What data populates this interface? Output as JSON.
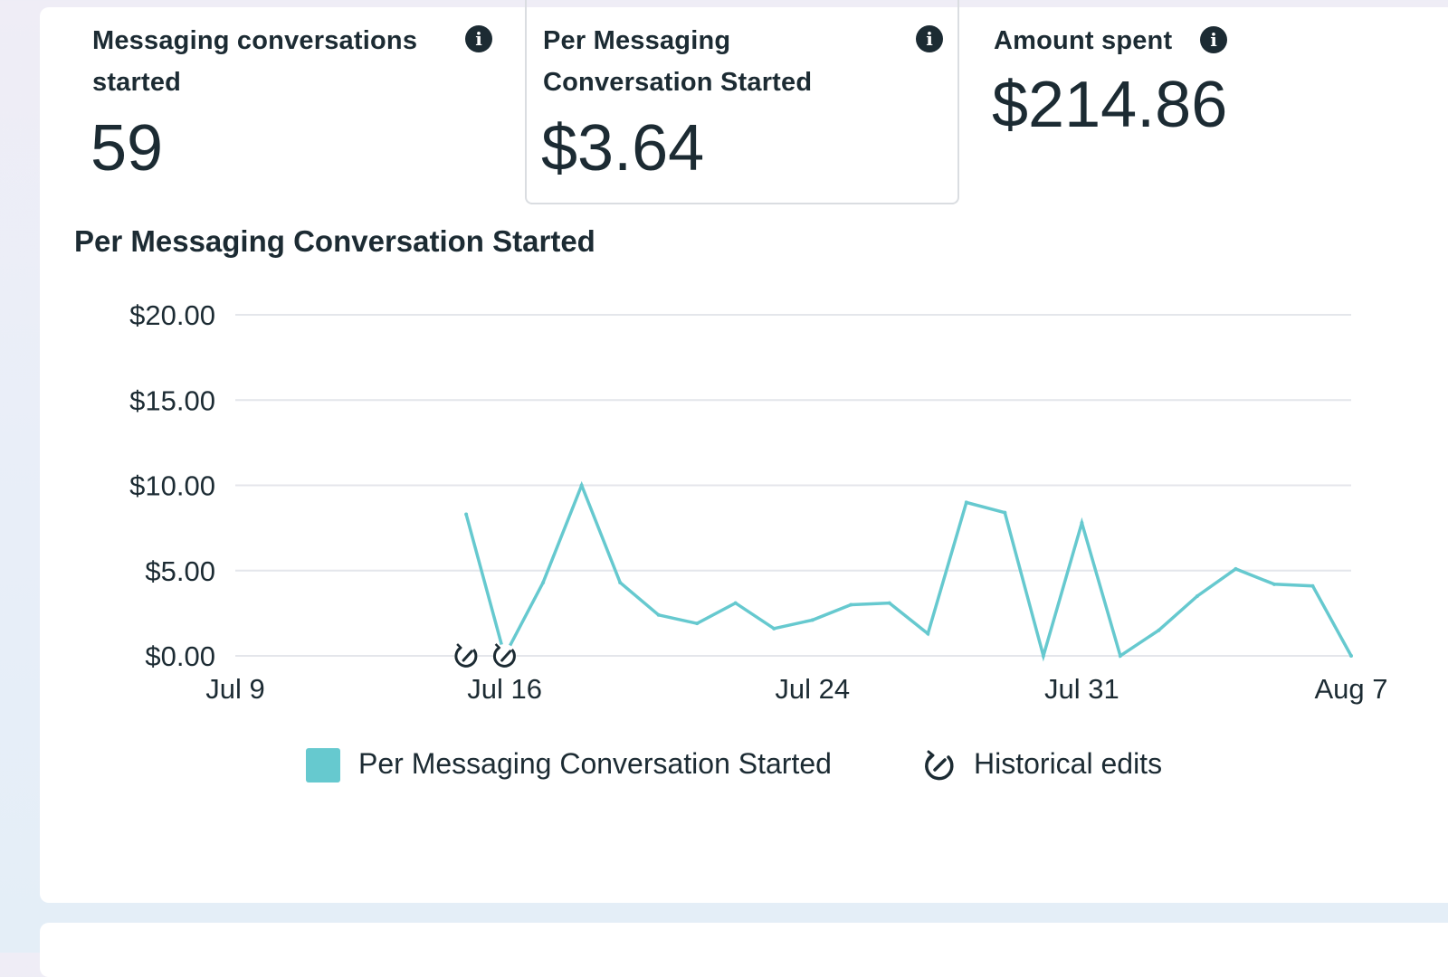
{
  "metrics": [
    {
      "label": "Messaging conversations started",
      "value": "59"
    },
    {
      "label": "Per Messaging Conversation Started",
      "value": "$3.64"
    },
    {
      "label": "Amount spent",
      "value": "$214.86"
    }
  ],
  "icons": {
    "info": "info-icon",
    "historical_edit": "history-edit-icon"
  },
  "colors": {
    "series": "#66c9cf",
    "grid": "#e4e6eb",
    "text": "#1c2b33"
  },
  "chart_data": {
    "type": "line",
    "title": "Per Messaging Conversation Started",
    "xlabel": "",
    "ylabel": "",
    "y_ticks": [
      "$0.00",
      "$5.00",
      "$10.00",
      "$15.00",
      "$20.00"
    ],
    "x_ticks": [
      "Jul 9",
      "Jul 16",
      "Jul 24",
      "Jul 31",
      "Aug 7"
    ],
    "ylim": [
      0,
      20
    ],
    "xlim": [
      "2023-07-09",
      "2023-08-07"
    ],
    "grid": true,
    "legend_position": "bottom",
    "series": [
      {
        "name": "Per Messaging Conversation Started",
        "color": "#66c9cf",
        "points": [
          {
            "x": "2023-07-15",
            "y": 8.3
          },
          {
            "x": "2023-07-16",
            "y": 0
          },
          {
            "x": "2023-07-17",
            "y": 4.3
          },
          {
            "x": "2023-07-18",
            "y": 10.0
          },
          {
            "x": "2023-07-19",
            "y": 4.3
          },
          {
            "x": "2023-07-20",
            "y": 2.4
          },
          {
            "x": "2023-07-21",
            "y": 1.9
          },
          {
            "x": "2023-07-22",
            "y": 3.1
          },
          {
            "x": "2023-07-23",
            "y": 1.6
          },
          {
            "x": "2023-07-24",
            "y": 2.1
          },
          {
            "x": "2023-07-25",
            "y": 3.0
          },
          {
            "x": "2023-07-26",
            "y": 3.1
          },
          {
            "x": "2023-07-27",
            "y": 1.3
          },
          {
            "x": "2023-07-28",
            "y": 9.0
          },
          {
            "x": "2023-07-29",
            "y": 8.4
          },
          {
            "x": "2023-07-30",
            "y": 0
          },
          {
            "x": "2023-07-31",
            "y": 7.8
          },
          {
            "x": "2023-08-01",
            "y": 0
          },
          {
            "x": "2023-08-02",
            "y": 1.5
          },
          {
            "x": "2023-08-03",
            "y": 3.5
          },
          {
            "x": "2023-08-04",
            "y": 5.1
          },
          {
            "x": "2023-08-05",
            "y": 4.2
          },
          {
            "x": "2023-08-06",
            "y": 4.1
          },
          {
            "x": "2023-08-07",
            "y": 0
          }
        ]
      }
    ],
    "historical_edits": [
      "2023-07-15",
      "2023-07-16"
    ],
    "legend": [
      "Per Messaging Conversation Started",
      "Historical edits"
    ]
  }
}
